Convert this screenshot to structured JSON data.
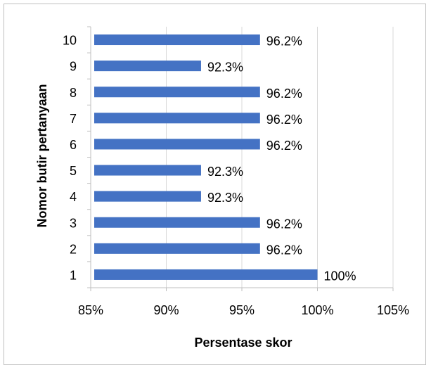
{
  "chart_data": {
    "type": "bar",
    "orientation": "horizontal",
    "categories": [
      "1",
      "2",
      "3",
      "4",
      "5",
      "6",
      "7",
      "8",
      "9",
      "10"
    ],
    "values": [
      100,
      96.2,
      96.2,
      92.3,
      92.3,
      96.2,
      96.2,
      96.2,
      92.3,
      96.2
    ],
    "data_labels": [
      "100%",
      "96.2%",
      "96.2%",
      "92.3%",
      "92.3%",
      "96.2%",
      "96.2%",
      "96.2%",
      "92.3%",
      "96.2%"
    ],
    "xlabel": "Persentase skor",
    "ylabel": "Nomor butir pertanyaan",
    "xlim": [
      85,
      105
    ],
    "xticks": [
      85,
      90,
      95,
      100,
      105
    ],
    "xtick_labels": [
      "85%",
      "90%",
      "95%",
      "100%",
      "105%"
    ],
    "grid": "vertical",
    "legend": "none",
    "bar_color": "#4472c4",
    "grid_color": "#d9d9d9",
    "axis_color": "#bfbfbf"
  }
}
